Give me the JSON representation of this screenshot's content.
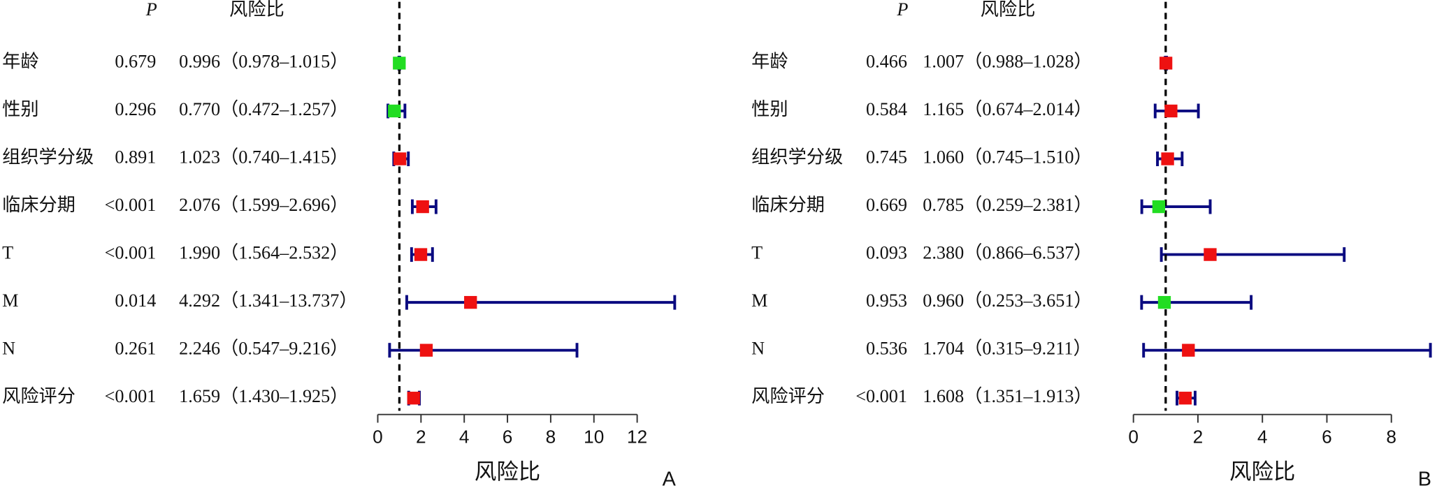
{
  "chart_data": [
    {
      "type": "forest",
      "p_header": "P",
      "hr_header": "风险比",
      "xlabel": "风险比",
      "panel": "A",
      "categories": [
        "年龄",
        "性别",
        "组织学分级",
        "临床分期",
        "T",
        "M",
        "N",
        "风险评分"
      ],
      "p_values": [
        "0.679",
        "0.296",
        "0.891",
        "<0.001",
        "<0.001",
        "0.014",
        "0.261",
        "<0.001"
      ],
      "values": [
        0.996,
        0.77,
        1.023,
        2.076,
        1.99,
        4.292,
        2.246,
        1.659
      ],
      "lower": [
        0.978,
        0.472,
        0.74,
        1.599,
        1.564,
        1.341,
        0.547,
        1.43
      ],
      "upper": [
        1.015,
        1.257,
        1.415,
        2.696,
        2.532,
        13.737,
        9.216,
        1.925
      ],
      "value_labels": [
        "0.996（0.978–1.015）",
        "0.770（0.472–1.257）",
        "1.023（0.740–1.415）",
        "2.076（1.599–2.696）",
        "1.990（1.564–2.532）",
        "4.292（1.341–13.737）",
        "2.246（0.547–9.216）",
        "1.659（1.430–1.925）"
      ],
      "colors": [
        "#22dd22",
        "#22dd22",
        "#ee1111",
        "#ee1111",
        "#ee1111",
        "#ee1111",
        "#ee1111",
        "#ee1111"
      ],
      "whisker_color": "#0a0a80",
      "reference": 1,
      "xlim": [
        0,
        12
      ],
      "xticks": [
        0,
        2,
        4,
        6,
        8,
        10,
        12
      ]
    },
    {
      "type": "forest",
      "p_header": "P",
      "hr_header": "风险比",
      "xlabel": "风险比",
      "panel": "B",
      "categories": [
        "年龄",
        "性别",
        "组织学分级",
        "临床分期",
        "T",
        "M",
        "N",
        "风险评分"
      ],
      "p_values": [
        "0.466",
        "0.584",
        "0.745",
        "0.669",
        "0.093",
        "0.953",
        "0.536",
        "<0.001"
      ],
      "values": [
        1.007,
        1.165,
        1.06,
        0.785,
        2.38,
        0.96,
        1.704,
        1.608
      ],
      "lower": [
        0.988,
        0.674,
        0.745,
        0.259,
        0.866,
        0.253,
        0.315,
        1.351
      ],
      "upper": [
        1.028,
        2.014,
        1.51,
        2.381,
        6.537,
        3.651,
        9.211,
        1.913
      ],
      "value_labels": [
        "1.007（0.988–1.028）",
        "1.165（0.674–2.014）",
        "1.060（0.745–1.510）",
        "0.785（0.259–2.381）",
        "2.380（0.866–6.537）",
        "0.960（0.253–3.651）",
        "1.704（0.315–9.211）",
        "1.608（1.351–1.913）"
      ],
      "colors": [
        "#ee1111",
        "#ee1111",
        "#ee1111",
        "#22dd22",
        "#ee1111",
        "#22dd22",
        "#ee1111",
        "#ee1111"
      ],
      "whisker_color": "#0a0a80",
      "reference": 1,
      "xlim": [
        0,
        8
      ],
      "xticks": [
        0,
        2,
        4,
        6,
        8
      ]
    }
  ]
}
